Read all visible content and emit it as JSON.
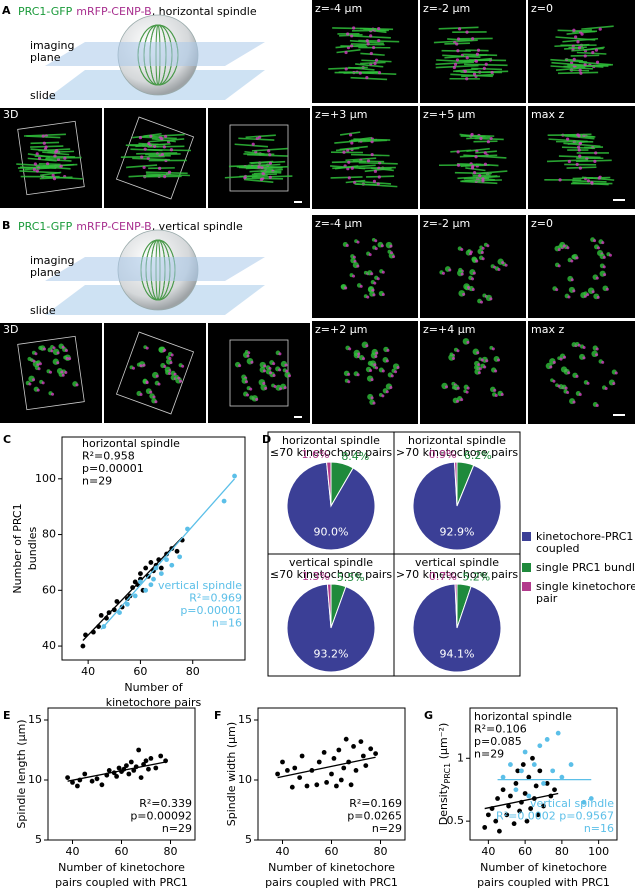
{
  "panel_A": {
    "letter": "A",
    "title_parts": [
      "PRC1-GFP",
      "mRFP-CENP-B",
      ", horizontal spindle"
    ],
    "title_colors": [
      "#1a9a3a",
      "#a8308f",
      "#000000"
    ],
    "imaging_label": [
      "imaging",
      "plane"
    ],
    "slide_label": "slide",
    "view_label": "3D",
    "z_labels": [
      "z=-4 µm",
      "z=-2 µm",
      "z=0",
      "z=+3 µm",
      "z=+5 µm",
      "max z"
    ]
  },
  "panel_B": {
    "letter": "B",
    "title_parts": [
      "PRC1-GFP",
      "mRFP-CENP-B",
      ", vertical spindle"
    ],
    "title_colors": [
      "#1a9a3a",
      "#a8308f",
      "#000000"
    ],
    "imaging_label": [
      "imaging",
      "plane"
    ],
    "slide_label": "slide",
    "view_label": "3D",
    "z_labels": [
      "z=-4 µm",
      "z=-2 µm",
      "z=0",
      "z=+2 µm",
      "z=+4 µm",
      "max z"
    ]
  },
  "chart_data": [
    {
      "type": "scatter",
      "panel": "C",
      "x_label": [
        "Number of",
        "kinetochore pairs"
      ],
      "y_label": [
        "Number of PRC1",
        "bundles"
      ],
      "xlim": [
        30,
        100
      ],
      "ylim": [
        35,
        115
      ],
      "xticks": [
        40,
        60,
        80
      ],
      "yticks": [
        40,
        60,
        80,
        100
      ],
      "annotations": [
        {
          "lines": [
            "horizontal spindle",
            "R²=0.958",
            "p=0.00001",
            "n=29"
          ],
          "color": "#000000"
        },
        {
          "lines": [
            "vertical spindle",
            "R²=0.969",
            "p=0.00001",
            "n=16"
          ],
          "color": "#5bbfe8"
        }
      ],
      "series": [
        {
          "name": "horizontal spindle",
          "color": "#000000",
          "x": [
            38,
            39,
            42,
            44,
            45,
            47,
            48,
            50,
            51,
            53,
            55,
            56,
            57,
            58,
            59,
            60,
            60,
            61,
            62,
            63,
            64,
            65,
            66,
            67,
            68,
            70,
            72,
            74,
            76
          ],
          "y": [
            40,
            44,
            45,
            47,
            51,
            50,
            52,
            53,
            56,
            54,
            57,
            58,
            61,
            63,
            62,
            64,
            66,
            60,
            68,
            65,
            70,
            67,
            69,
            71,
            68,
            73,
            75,
            74,
            78
          ],
          "fit": {
            "x": [
              38,
              76
            ],
            "y": [
              42,
              79
            ]
          }
        },
        {
          "name": "vertical spindle",
          "color": "#5bbfe8",
          "x": [
            46,
            52,
            55,
            58,
            60,
            62,
            64,
            65,
            66,
            68,
            70,
            72,
            75,
            78,
            92,
            96
          ],
          "y": [
            47,
            52,
            55,
            58,
            63,
            60,
            62,
            64,
            68,
            66,
            71,
            69,
            72,
            82,
            92,
            101
          ],
          "fit": {
            "x": [
              45,
              96
            ],
            "y": [
              46,
              100
            ]
          }
        }
      ]
    },
    {
      "type": "pie",
      "panel": "D",
      "categories": [
        [
          "kinetochore-PRC1",
          "coupled"
        ],
        [
          "single PRC1 bundle"
        ],
        [
          "single kinetochore",
          "pair"
        ]
      ],
      "colors": [
        "#3b3f96",
        "#1f8a3c",
        "#b23a8c"
      ],
      "pies": [
        {
          "title": [
            "horizontal spindle",
            "≤70 kinetochore pairs"
          ],
          "values": [
            90.0,
            8.4,
            1.6
          ],
          "value_labels": [
            "90.0%",
            "8.4%",
            "1.6%"
          ]
        },
        {
          "title": [
            "horizontal spindle",
            ">70 kinetochore pairs"
          ],
          "values": [
            92.9,
            6.2,
            0.9
          ],
          "value_labels": [
            "92.9%",
            "6.2%",
            "0.9%"
          ]
        },
        {
          "title": [
            "vertical spindle",
            "≤70 kinetochore pairs"
          ],
          "values": [
            93.2,
            5.5,
            1.3
          ],
          "value_labels": [
            "93.2%",
            "5.5%",
            "1.3%"
          ]
        },
        {
          "title": [
            "vertical spindle",
            ">70 kinetochore pairs"
          ],
          "values": [
            94.1,
            5.2,
            0.7
          ],
          "value_labels": [
            "94.1%",
            "5.2%",
            "0.7%"
          ]
        }
      ]
    },
    {
      "type": "scatter",
      "panel": "E",
      "x_label": [
        "Number of kinetochore",
        "pairs coupled with PRC1"
      ],
      "y_label": [
        "Spindle length (µm)"
      ],
      "xlim": [
        30,
        90
      ],
      "ylim": [
        5,
        16
      ],
      "xticks": [
        40,
        60,
        80
      ],
      "yticks": [
        5,
        10,
        15
      ],
      "annotations": [
        {
          "lines": [
            "R²=0.339",
            "p=0.00092",
            "n=29"
          ],
          "color": "#000000"
        }
      ],
      "series": [
        {
          "name": "horizontal spindle",
          "color": "#000000",
          "x": [
            38,
            40,
            42,
            43,
            45,
            48,
            50,
            52,
            54,
            55,
            57,
            58,
            59,
            60,
            61,
            62,
            63,
            64,
            65,
            66,
            67,
            68,
            69,
            70,
            71,
            72,
            74,
            76,
            78
          ],
          "y": [
            10.2,
            9.8,
            9.5,
            10.0,
            10.5,
            9.9,
            10.1,
            9.6,
            10.4,
            10.8,
            10.6,
            10.3,
            11.0,
            10.7,
            10.9,
            11.2,
            10.5,
            11.5,
            10.8,
            11.1,
            12.5,
            10.2,
            11.3,
            11.6,
            10.9,
            11.8,
            11.0,
            12.0,
            11.6
          ],
          "fit": {
            "x": [
              38,
              78
            ],
            "y": [
              9.9,
              11.5
            ]
          }
        }
      ]
    },
    {
      "type": "scatter",
      "panel": "F",
      "x_label": [
        "Number of kinetochore",
        "pairs coupled with PRC1"
      ],
      "y_label": [
        "Spindle width (µm)"
      ],
      "xlim": [
        30,
        90
      ],
      "ylim": [
        5,
        16
      ],
      "xticks": [
        40,
        60,
        80
      ],
      "yticks": [
        5,
        10,
        15
      ],
      "annotations": [
        {
          "lines": [
            "R²=0.169",
            "p=0.0265",
            "n=29"
          ],
          "color": "#000000"
        }
      ],
      "series": [
        {
          "name": "horizontal spindle",
          "color": "#000000",
          "x": [
            38,
            40,
            42,
            44,
            45,
            47,
            48,
            50,
            52,
            54,
            55,
            57,
            58,
            60,
            61,
            62,
            63,
            64,
            65,
            66,
            67,
            68,
            69,
            70,
            72,
            73,
            74,
            76,
            78
          ],
          "y": [
            10.5,
            11.5,
            10.8,
            9.4,
            11.0,
            10.2,
            12.0,
            9.5,
            10.8,
            9.6,
            11.5,
            12.3,
            9.8,
            10.5,
            11.8,
            9.5,
            12.5,
            10.0,
            11.0,
            13.4,
            11.5,
            9.6,
            12.8,
            10.8,
            13.2,
            12.0,
            11.2,
            12.6,
            12.2
          ],
          "fit": {
            "x": [
              38,
              78
            ],
            "y": [
              10.2,
              11.9
            ]
          }
        }
      ]
    },
    {
      "type": "scatter",
      "panel": "G",
      "x_label": [
        "Number of kinetochore",
        "pairs coupled with PRC1"
      ],
      "y_label": [
        "Density"
      ],
      "y_label_sub": "PRC1",
      "y_label_unit": " (µm⁻²)",
      "xlim": [
        30,
        110
      ],
      "ylim": [
        0.35,
        1.4
      ],
      "xticks": [
        40,
        60,
        80,
        100
      ],
      "yticks": [
        0.5,
        1
      ],
      "annotations": [
        {
          "lines": [
            "horizontal spindle",
            "R²=0.106",
            "p=0.085",
            "n=29"
          ],
          "color": "#000000"
        },
        {
          "lines": [
            "vertical spindle",
            "R²=0.0002 p=0.9567",
            "n=16"
          ],
          "color": "#5bbfe8"
        }
      ],
      "series": [
        {
          "name": "horizontal spindle",
          "color": "#000000",
          "x": [
            38,
            40,
            42,
            44,
            45,
            46,
            48,
            50,
            51,
            52,
            54,
            55,
            56,
            57,
            58,
            59,
            60,
            61,
            62,
            63,
            64,
            65,
            66,
            67,
            68,
            70,
            72,
            74,
            76
          ],
          "y": [
            0.45,
            0.55,
            0.6,
            0.5,
            0.68,
            0.42,
            0.75,
            0.55,
            0.62,
            0.7,
            0.48,
            0.8,
            0.9,
            0.58,
            0.65,
            0.95,
            0.72,
            0.5,
            0.85,
            0.6,
            1.0,
            0.68,
            0.78,
            0.55,
            0.9,
            0.62,
            0.8,
            0.7,
            0.75
          ],
          "fit": {
            "x": [
              38,
              78
            ],
            "y": [
              0.6,
              0.72
            ]
          }
        },
        {
          "name": "vertical spindle",
          "color": "#5bbfe8",
          "x": [
            48,
            52,
            55,
            58,
            60,
            62,
            65,
            68,
            70,
            72,
            75,
            78,
            80,
            85,
            92,
            96
          ],
          "y": [
            0.85,
            0.95,
            0.75,
            0.9,
            1.05,
            0.7,
            0.95,
            1.1,
            0.8,
            1.15,
            0.9,
            1.2,
            0.85,
            0.95,
            0.65,
            0.68
          ],
          "fit": {
            "x": [
              45,
              96
            ],
            "y": [
              0.83,
              0.83
            ]
          }
        }
      ]
    }
  ]
}
